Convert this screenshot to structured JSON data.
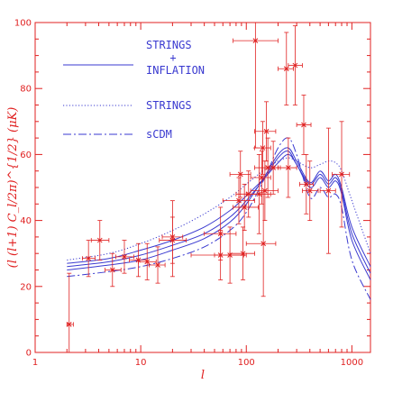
{
  "chart_data": {
    "type": "line",
    "title": "",
    "xlabel": "l",
    "ylabel": "(l (l+1) C_l/2π)^{1/2} (μK)",
    "xscale": "log",
    "xlim": [
      1,
      1500
    ],
    "ylim": [
      0,
      100
    ],
    "x_ticks": [
      1,
      10,
      100,
      1000
    ],
    "x_tick_labels": [
      "1",
      "10",
      "100",
      "1000"
    ],
    "y_ticks": [
      0,
      20,
      40,
      60,
      80,
      100
    ],
    "y_tick_labels": [
      "0",
      "20",
      "40",
      "60",
      "80",
      "100"
    ],
    "grid": false,
    "legend_position": "top-left",
    "colors": {
      "axes": "#e02020",
      "theory": "#3a3ad0",
      "data": "#e02020"
    },
    "legend": [
      {
        "label_lines": [
          "STRINGS",
          "+",
          "INFLATION"
        ],
        "style": "solid"
      },
      {
        "label_lines": [
          "STRINGS"
        ],
        "style": "dotted"
      },
      {
        "label_lines": [
          "sCDM"
        ],
        "style": "dashdot"
      }
    ],
    "series": [
      {
        "style": "solid",
        "x": [
          2,
          5,
          10,
          20,
          40,
          70,
          100,
          150,
          200,
          250,
          300,
          400,
          500,
          600,
          700,
          800,
          1000,
          1500
        ],
        "y": [
          27,
          28.5,
          31,
          34,
          38,
          43,
          47.5,
          53,
          57.5,
          60,
          57,
          50,
          53,
          50,
          52,
          48,
          34,
          22
        ]
      },
      {
        "style": "solid",
        "x": [
          2,
          5,
          10,
          20,
          40,
          70,
          100,
          150,
          200,
          250,
          300,
          400,
          500,
          600,
          700,
          800,
          1000,
          1500
        ],
        "y": [
          26,
          27.5,
          29.5,
          32.5,
          36,
          41,
          46,
          53,
          59,
          61,
          57,
          51,
          54,
          51,
          53,
          49,
          36,
          24
        ]
      },
      {
        "style": "solid",
        "x": [
          2,
          5,
          10,
          20,
          40,
          70,
          100,
          150,
          200,
          250,
          300,
          400,
          500,
          600,
          700,
          800,
          1000,
          1500
        ],
        "y": [
          25,
          26.5,
          28,
          31,
          34.5,
          39.5,
          45,
          53.5,
          60,
          62,
          58,
          51.5,
          55,
          52,
          54,
          50,
          38,
          26
        ]
      },
      {
        "style": "dotted",
        "x": [
          2,
          5,
          10,
          20,
          40,
          70,
          100,
          150,
          200,
          250,
          300,
          400,
          500,
          600,
          700,
          800,
          1000,
          1500
        ],
        "y": [
          28,
          30,
          33,
          37,
          42,
          47,
          51,
          55.5,
          58,
          59,
          58,
          56,
          57,
          58,
          57.5,
          55,
          46,
          30
        ]
      },
      {
        "style": "dashdot",
        "x": [
          2,
          5,
          10,
          20,
          40,
          70,
          100,
          150,
          200,
          250,
          300,
          400,
          500,
          600,
          700,
          800,
          1000,
          1500
        ],
        "y": [
          23,
          24.5,
          26,
          28.5,
          32,
          37,
          42.5,
          53,
          62,
          65,
          60,
          47,
          50,
          47,
          48,
          44,
          28,
          16
        ]
      }
    ],
    "data_points": [
      {
        "x": 2.1,
        "y": 8.5,
        "xerr": [
          2.0,
          2.3
        ],
        "yerr": [
          0,
          24
        ]
      },
      {
        "x": 3.2,
        "y": 28.5,
        "xerr": [
          2.8,
          3.7
        ],
        "yerr": [
          23,
          34
        ]
      },
      {
        "x": 4.1,
        "y": 34,
        "xerr": [
          3.4,
          5.0
        ],
        "yerr": [
          28,
          40
        ]
      },
      {
        "x": 5.4,
        "y": 25,
        "xerr": [
          4.6,
          6.5
        ],
        "yerr": [
          20,
          30
        ]
      },
      {
        "x": 7.0,
        "y": 29,
        "xerr": [
          5.8,
          8.6
        ],
        "yerr": [
          24,
          34
        ]
      },
      {
        "x": 9.5,
        "y": 28,
        "xerr": [
          7.8,
          11.5
        ],
        "yerr": [
          23,
          33
        ]
      },
      {
        "x": 11.5,
        "y": 27.5,
        "xerr": [
          9.5,
          14
        ],
        "yerr": [
          22,
          33
        ]
      },
      {
        "x": 14.5,
        "y": 26.5,
        "xerr": [
          12,
          17
        ],
        "yerr": [
          21,
          32
        ]
      },
      {
        "x": 20,
        "y": 34,
        "xerr": [
          15,
          27
        ],
        "yerr": [
          27,
          41
        ]
      },
      {
        "x": 20,
        "y": 35,
        "xerr": [
          16,
          25
        ],
        "yerr": [
          23,
          46
        ]
      },
      {
        "x": 57,
        "y": 29.5,
        "xerr": [
          30,
          100
        ],
        "yerr": [
          22,
          37
        ]
      },
      {
        "x": 57,
        "y": 36,
        "xerr": [
          40,
          80
        ],
        "yerr": [
          28,
          44
        ]
      },
      {
        "x": 70,
        "y": 29.5,
        "xerr": [
          50,
          95
        ],
        "yerr": [
          21,
          38
        ]
      },
      {
        "x": 85,
        "y": 46,
        "xerr": [
          60,
          120
        ],
        "yerr": [
          39,
          53
        ]
      },
      {
        "x": 88,
        "y": 54,
        "xerr": [
          70,
          110
        ],
        "yerr": [
          47,
          61
        ]
      },
      {
        "x": 93,
        "y": 30,
        "xerr": [
          70,
          120
        ],
        "yerr": [
          22,
          38
        ]
      },
      {
        "x": 96,
        "y": 44,
        "xerr": [
          75,
          130
        ],
        "yerr": [
          37,
          51
        ]
      },
      {
        "x": 105,
        "y": 48,
        "xerr": [
          80,
          140
        ],
        "yerr": [
          41,
          55
        ]
      },
      {
        "x": 122,
        "y": 94.5,
        "xerr": [
          75,
          200
        ],
        "yerr": [
          62,
          100
        ]
      },
      {
        "x": 132,
        "y": 48,
        "xerr": [
          100,
          170
        ],
        "yerr": [
          36,
          60
        ]
      },
      {
        "x": 140,
        "y": 53,
        "xerr": [
          110,
          170
        ],
        "yerr": [
          45,
          61
        ]
      },
      {
        "x": 143,
        "y": 62,
        "xerr": [
          120,
          170
        ],
        "yerr": [
          54,
          70
        ]
      },
      {
        "x": 145,
        "y": 33,
        "xerr": [
          100,
          190
        ],
        "yerr": [
          17,
          49
        ]
      },
      {
        "x": 150,
        "y": 49,
        "xerr": [
          110,
          200
        ],
        "yerr": [
          40,
          58
        ]
      },
      {
        "x": 155,
        "y": 67,
        "xerr": [
          120,
          190
        ],
        "yerr": [
          58,
          76
        ]
      },
      {
        "x": 160,
        "y": 56,
        "xerr": [
          120,
          200
        ],
        "yerr": [
          47,
          65
        ]
      },
      {
        "x": 180,
        "y": 56,
        "xerr": [
          150,
          210
        ],
        "yerr": [
          48,
          64
        ]
      },
      {
        "x": 240,
        "y": 86,
        "xerr": [
          200,
          280
        ],
        "yerr": [
          75,
          97
        ]
      },
      {
        "x": 250,
        "y": 56,
        "xerr": [
          200,
          300
        ],
        "yerr": [
          47,
          65
        ]
      },
      {
        "x": 290,
        "y": 87,
        "xerr": [
          250,
          340
        ],
        "yerr": [
          75,
          99
        ]
      },
      {
        "x": 350,
        "y": 69,
        "xerr": [
          300,
          410
        ],
        "yerr": [
          60,
          78
        ]
      },
      {
        "x": 370,
        "y": 51,
        "xerr": [
          320,
          430
        ],
        "yerr": [
          42,
          60
        ]
      },
      {
        "x": 400,
        "y": 49,
        "xerr": [
          340,
          480
        ],
        "yerr": [
          40,
          58
        ]
      },
      {
        "x": 600,
        "y": 49,
        "xerr": [
          500,
          700
        ],
        "yerr": [
          30,
          68
        ]
      },
      {
        "x": 800,
        "y": 54,
        "xerr": [
          650,
          950
        ],
        "yerr": [
          38,
          70
        ]
      }
    ]
  }
}
